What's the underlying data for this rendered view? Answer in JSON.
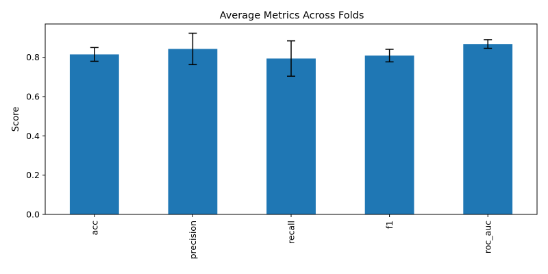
{
  "chart_data": {
    "type": "bar",
    "title": "Average Metrics Across Folds",
    "xlabel": "",
    "ylabel": "Score",
    "categories": [
      "acc",
      "precision",
      "recall",
      "f1",
      "roc_auc"
    ],
    "values": [
      0.815,
      0.843,
      0.794,
      0.809,
      0.868
    ],
    "errors": [
      0.035,
      0.08,
      0.09,
      0.032,
      0.022
    ],
    "ylim": [
      0,
      0.97
    ],
    "yticks": [
      0.0,
      0.2,
      0.4,
      0.6,
      0.8
    ],
    "ytick_labels": [
      "0.0",
      "0.2",
      "0.4",
      "0.6",
      "0.8"
    ],
    "grid": false,
    "legend": "none",
    "bar_color": "#1f77b4",
    "error_color": "#000000"
  }
}
